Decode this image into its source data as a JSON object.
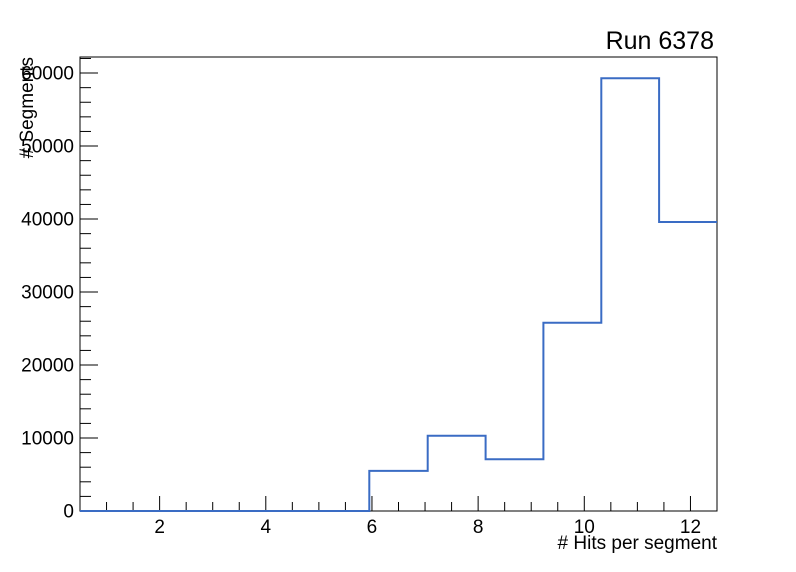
{
  "window": {
    "background": "#ffffff"
  },
  "chart_data": {
    "type": "bar",
    "subtype": "histogram-step-outline",
    "title": "Run 6378",
    "xlabel": "# Hits per segment",
    "ylabel": "# Segments",
    "xlim": [
      0.5,
      12.5
    ],
    "ylim": [
      0,
      62200
    ],
    "grid": false,
    "bins": {
      "edges": [
        0.5,
        1.59,
        2.68,
        3.77,
        4.86,
        5.95,
        7.05,
        8.14,
        9.23,
        10.32,
        11.41,
        12.5
      ],
      "counts": [
        0,
        0,
        0,
        0,
        0,
        5500,
        10300,
        7100,
        25800,
        59300,
        39600
      ]
    },
    "x_axis": {
      "major_ticks": [
        2,
        4,
        6,
        8,
        10,
        12
      ],
      "major_labels": [
        "2",
        "4",
        "6",
        "8",
        "10",
        "12"
      ],
      "minor_step": 0.5
    },
    "y_axis": {
      "major_ticks": [
        0,
        10000,
        20000,
        30000,
        40000,
        50000,
        60000
      ],
      "major_labels": [
        "0",
        "10000",
        "20000",
        "30000",
        "40000",
        "50000",
        "60000"
      ],
      "minor_step": 2000
    },
    "colors": {
      "line": "#3a6cc4",
      "axis": "#000000",
      "text": "#000000",
      "background": "#ffffff"
    }
  }
}
